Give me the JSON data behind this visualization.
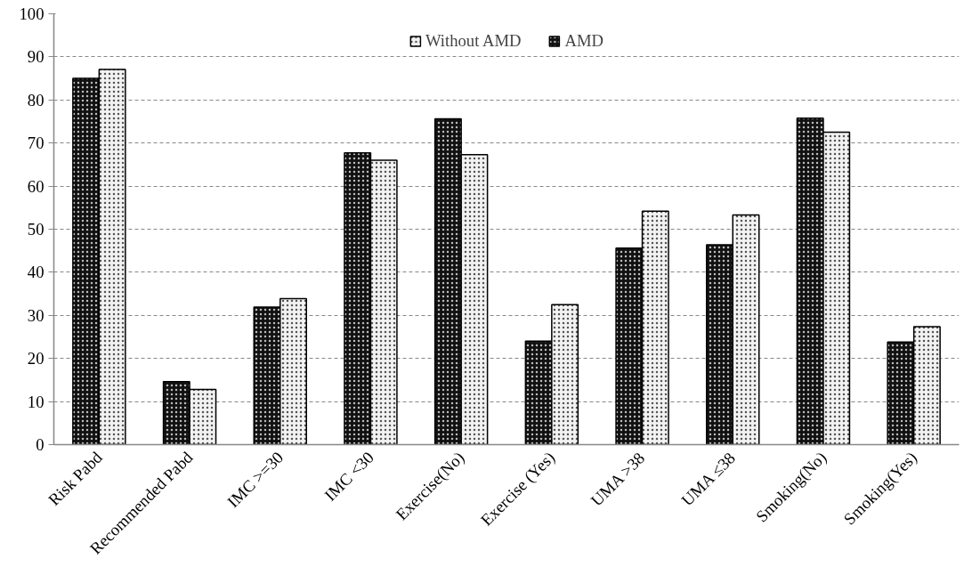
{
  "chart_data": {
    "type": "bar",
    "categories": [
      "Risk Pabd",
      "Recommended Pabd",
      "IMC >=30",
      "IMC <30",
      "Exercise(No)",
      "Exercise (Yes)",
      "UMA >38",
      "UMA ≤38",
      "Smoking(No)",
      "Smoking(Yes)"
    ],
    "series": [
      {
        "name": "AMD",
        "color": "#111111",
        "values": [
          85.0,
          14.6,
          31.9,
          67.7,
          75.6,
          24.0,
          45.6,
          46.4,
          75.8,
          23.8
        ]
      },
      {
        "name": "Without AMD",
        "color": "#f2f2f2",
        "values": [
          87.1,
          12.8,
          33.9,
          66.0,
          67.3,
          32.5,
          54.2,
          53.3,
          72.5,
          27.4
        ]
      }
    ],
    "ylim": [
      0,
      100
    ],
    "yticks": [
      0,
      10,
      20,
      30,
      40,
      50,
      60,
      70,
      80,
      90,
      100
    ],
    "grid": "y",
    "legend": "top"
  }
}
